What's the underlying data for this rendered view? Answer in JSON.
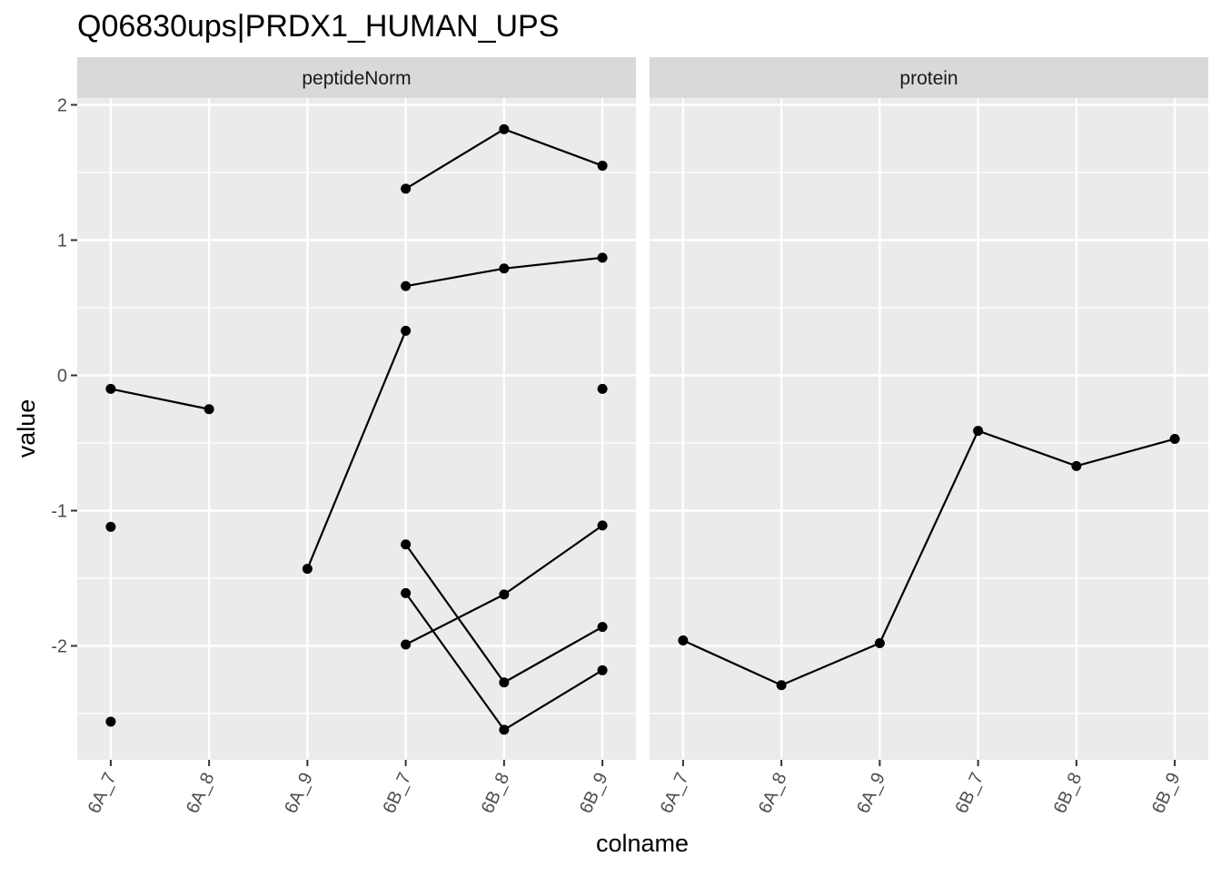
{
  "chart_data": {
    "type": "line",
    "title": "Q06830ups|PRDX1_HUMAN_UPS",
    "xlabel": "colname",
    "ylabel": "value",
    "categories": [
      "6A_7",
      "6A_8",
      "6A_9",
      "6B_7",
      "6B_8",
      "6B_9"
    ],
    "ylim": [
      -2.9,
      2.05
    ],
    "y_ticks": [
      -2,
      -1,
      0,
      1,
      2
    ],
    "y_tick_labels": [
      "-2",
      "-1",
      "0",
      "1",
      "2"
    ],
    "grid": true,
    "legend": "none",
    "panels": [
      {
        "name": "peptideNorm",
        "series": [
          {
            "values": [
              -0.1,
              -0.25,
              null,
              null,
              null,
              null
            ]
          },
          {
            "values": [
              -1.12,
              null,
              null,
              null,
              null,
              null
            ]
          },
          {
            "values": [
              -2.56,
              null,
              null,
              null,
              null,
              null
            ]
          },
          {
            "values": [
              null,
              null,
              -1.43,
              0.33,
              null,
              null
            ]
          },
          {
            "values": [
              null,
              null,
              null,
              1.38,
              1.82,
              1.55
            ]
          },
          {
            "values": [
              null,
              null,
              null,
              0.66,
              0.79,
              0.87
            ]
          },
          {
            "values": [
              null,
              null,
              null,
              null,
              null,
              -0.1
            ]
          },
          {
            "values": [
              null,
              null,
              null,
              -1.25,
              -2.27,
              -1.86
            ]
          },
          {
            "values": [
              null,
              null,
              null,
              -1.61,
              -2.62,
              -2.18
            ]
          },
          {
            "values": [
              null,
              null,
              null,
              -1.99,
              -1.62,
              -1.11
            ]
          }
        ]
      },
      {
        "name": "protein",
        "series": [
          {
            "values": [
              -1.96,
              -2.29,
              -1.98,
              -0.41,
              -0.67,
              -0.47
            ]
          }
        ]
      }
    ]
  },
  "colors": {
    "panel_bg": "#ebebeb",
    "strip_bg": "#d9d9d9",
    "grid": "#ffffff",
    "mark": "#000000",
    "tick_text": "#4d4d4d"
  }
}
